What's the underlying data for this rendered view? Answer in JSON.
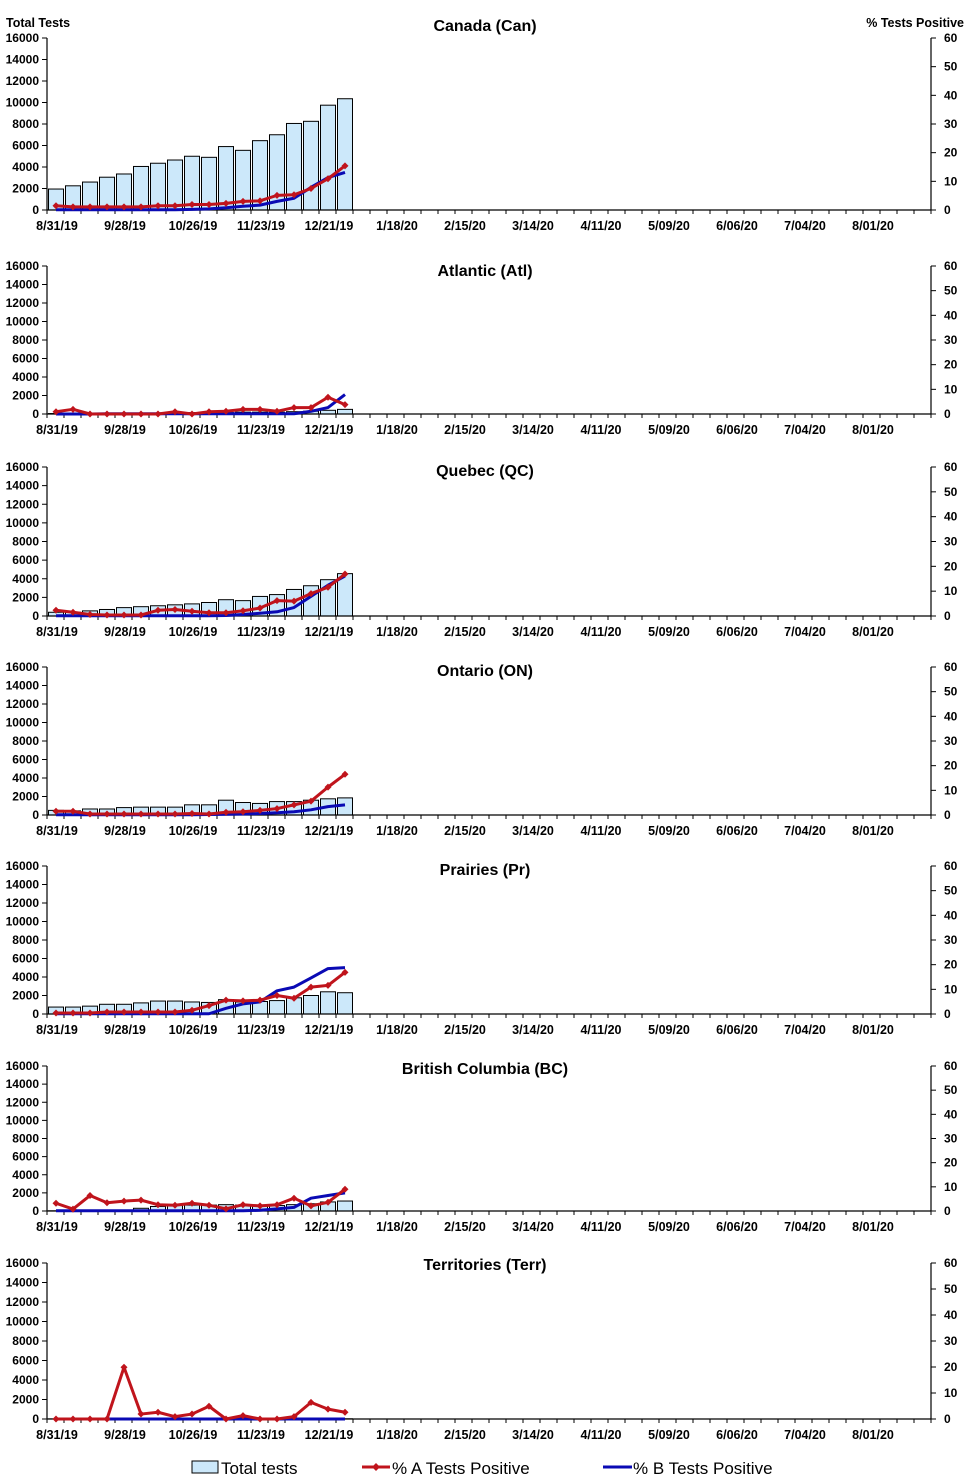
{
  "axis_titles": {
    "left": "Total Tests",
    "right": "% Tests Positive"
  },
  "legend": {
    "bars": "Total tests",
    "a": "% A Tests Positive",
    "b": "% B Tests Positive"
  },
  "colors": {
    "bar_fill": "#cce8fa",
    "bar_stroke": "#000000",
    "a_line": "#c0141c",
    "b_line": "#0a0ab4"
  },
  "x_ticks": [
    "8/31/19",
    "9/28/19",
    "10/26/19",
    "11/23/19",
    "12/21/19",
    "1/18/20",
    "2/15/20",
    "3/14/20",
    "4/11/20",
    "5/09/20",
    "6/06/20",
    "7/04/20",
    "8/01/20"
  ],
  "weeks": [
    "8/31/19",
    "9/07/19",
    "9/14/19",
    "9/21/19",
    "9/28/19",
    "10/05/19",
    "10/12/19",
    "10/19/19",
    "10/26/19",
    "11/02/19",
    "11/09/19",
    "11/16/19",
    "11/23/19",
    "11/30/19",
    "12/07/19",
    "12/14/19",
    "12/21/19",
    "12/28/19"
  ],
  "y_left_ticks": [
    "0",
    "2000",
    "4000",
    "6000",
    "8000",
    "10000",
    "12000",
    "14000",
    "16000"
  ],
  "y_right_ticks": [
    "0",
    "10",
    "20",
    "30",
    "40",
    "50",
    "60"
  ],
  "chart_data": [
    {
      "type": "bar+line",
      "title": "Canada (Can)",
      "ylim_left": [
        0,
        16000
      ],
      "ylim_right": [
        0,
        60
      ],
      "x_range_weeks": 52,
      "total_tests": [
        1950,
        2250,
        2600,
        3050,
        3350,
        4050,
        4350,
        4650,
        5000,
        4900,
        5900,
        5550,
        6450,
        7000,
        8050,
        8250,
        9750,
        10350
      ],
      "pct_a": [
        1.5,
        1.1,
        1.1,
        1.1,
        1.1,
        1.1,
        1.5,
        1.5,
        1.9,
        1.9,
        2.3,
        3.0,
        3.2,
        5.1,
        5.3,
        7.5,
        10.9,
        15.4
      ],
      "pct_b": [
        0.1,
        0.1,
        0.1,
        0.1,
        0.1,
        0.1,
        0.1,
        0.1,
        0.2,
        0.4,
        0.8,
        1.3,
        1.7,
        3.0,
        4.1,
        7.9,
        11.3,
        13.1
      ]
    },
    {
      "type": "bar+line",
      "title": "Atlantic (Atl)",
      "ylim_left": [
        0,
        16000
      ],
      "ylim_right": [
        0,
        60
      ],
      "x_range_weeks": 52,
      "total_tests": [
        50,
        50,
        50,
        50,
        50,
        50,
        100,
        100,
        150,
        150,
        150,
        200,
        200,
        200,
        250,
        300,
        400,
        500
      ],
      "pct_a": [
        0.9,
        1.9,
        0,
        0,
        0,
        0,
        0,
        0.9,
        0,
        0.9,
        1.1,
        1.9,
        1.9,
        1.1,
        2.6,
        2.6,
        6.8,
        3.8
      ],
      "pct_b": [
        0,
        0,
        0,
        0.1,
        0.1,
        0.1,
        0.1,
        0.1,
        0.1,
        0.1,
        0.1,
        0.1,
        0.1,
        0.1,
        0.1,
        1.1,
        2.6,
        7.9
      ]
    },
    {
      "type": "bar+line",
      "title": "Quebec (QC)",
      "ylim_left": [
        0,
        16000
      ],
      "ylim_right": [
        0,
        60
      ],
      "x_range_weeks": 52,
      "total_tests": [
        400,
        400,
        550,
        700,
        900,
        1000,
        1100,
        1200,
        1300,
        1450,
        1750,
        1650,
        2100,
        2300,
        2850,
        3250,
        3900,
        4550
      ],
      "pct_a": [
        2.3,
        1.5,
        0.6,
        0.4,
        0.4,
        0.4,
        2.3,
        2.6,
        1.9,
        1.3,
        1.3,
        2.1,
        3.2,
        6.2,
        6.0,
        9.0,
        11.6,
        16.9
      ],
      "pct_b": [
        0.1,
        0.1,
        0.1,
        0.1,
        0.1,
        0.1,
        0.1,
        0.1,
        0.1,
        0.1,
        0.2,
        0.6,
        1.1,
        1.7,
        3.4,
        7.9,
        12.4,
        16.1
      ]
    },
    {
      "type": "bar+line",
      "title": "Ontario (ON)",
      "ylim_left": [
        0,
        16000
      ],
      "ylim_right": [
        0,
        60
      ],
      "x_range_weeks": 52,
      "total_tests": [
        500,
        450,
        650,
        650,
        800,
        850,
        850,
        850,
        1100,
        1100,
        1600,
        1350,
        1250,
        1450,
        1450,
        1600,
        1750,
        1850
      ],
      "pct_a": [
        1.5,
        1.5,
        0.4,
        0.4,
        0.4,
        0.4,
        0.4,
        0.4,
        0.6,
        0.4,
        1.1,
        1.3,
        1.9,
        2.6,
        4.1,
        5.6,
        11.3,
        16.5
      ],
      "pct_b": [
        0.1,
        0.1,
        0.1,
        0.1,
        0.1,
        0.1,
        0.1,
        0.1,
        0.1,
        0.2,
        0.3,
        0.4,
        0.6,
        0.9,
        1.3,
        2.1,
        3.4,
        4.1
      ]
    },
    {
      "type": "bar+line",
      "title": "Prairies (Pr)",
      "ylim_left": [
        0,
        16000
      ],
      "ylim_right": [
        0,
        60
      ],
      "x_range_weeks": 52,
      "total_tests": [
        750,
        750,
        850,
        1050,
        1050,
        1200,
        1400,
        1400,
        1300,
        1250,
        1550,
        1300,
        1350,
        1450,
        1750,
        2000,
        2400,
        2300
      ],
      "pct_a": [
        0.4,
        0.4,
        0.4,
        0.8,
        0.8,
        0.8,
        0.8,
        0.8,
        1.5,
        3.4,
        5.6,
        5.3,
        5.6,
        7.5,
        6.4,
        10.9,
        11.6,
        16.9
      ],
      "pct_b": [
        0.1,
        0.1,
        0.1,
        0.1,
        0.1,
        0.1,
        0.1,
        0.1,
        0.1,
        0.1,
        2.3,
        4.1,
        4.9,
        9.4,
        10.9,
        14.6,
        18.4,
        18.8
      ]
    },
    {
      "type": "bar+line",
      "title": "British Columbia (BC)",
      "ylim_left": [
        0,
        16000
      ],
      "ylim_right": [
        0,
        60
      ],
      "x_range_weeks": 52,
      "total_tests": [
        20,
        20,
        20,
        20,
        20,
        300,
        500,
        600,
        650,
        650,
        700,
        650,
        600,
        600,
        700,
        800,
        1000,
        1100
      ],
      "pct_a": [
        3.2,
        0.8,
        6.4,
        3.4,
        4.1,
        4.5,
        2.6,
        2.4,
        3.2,
        2.4,
        0.9,
        2.6,
        2.1,
        2.6,
        5.3,
        2.1,
        3.6,
        9.0
      ],
      "pct_b": [
        0.1,
        0.1,
        0.1,
        0.1,
        0.1,
        0.1,
        0.1,
        0.1,
        0.1,
        0.1,
        0.1,
        0.1,
        0.3,
        0.9,
        1.5,
        5.3,
        6.4,
        7.5
      ]
    },
    {
      "type": "bar+line",
      "title": "Territories (Terr)",
      "ylim_left": [
        0,
        16000
      ],
      "ylim_right": [
        0,
        60
      ],
      "x_range_weeks": 52,
      "total_tests": [
        10,
        10,
        10,
        10,
        20,
        20,
        20,
        20,
        20,
        20,
        20,
        20,
        20,
        20,
        20,
        20,
        20,
        20
      ],
      "pct_a": [
        0,
        0,
        0,
        0,
        19.9,
        1.9,
        2.6,
        0.9,
        1.9,
        4.9,
        0,
        1.3,
        0,
        0,
        0.9,
        6.4,
        3.8,
        2.6
      ],
      "pct_b": [
        0,
        0,
        0,
        0,
        0,
        0,
        0,
        0,
        0,
        0,
        0,
        0,
        0,
        0,
        0,
        0,
        0,
        0
      ]
    }
  ]
}
